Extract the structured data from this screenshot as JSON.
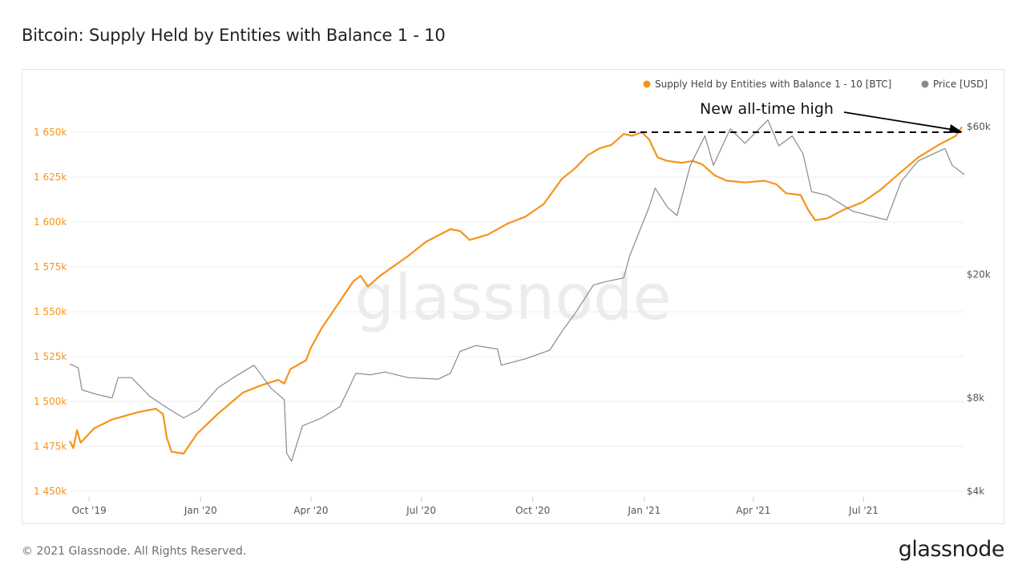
{
  "title": "Bitcoin: Supply Held by Entities with Balance 1 - 10",
  "footer": {
    "copyright": "© 2021 Glassnode. All Rights Reserved.",
    "brand": "glassnode"
  },
  "watermark": "glassnode",
  "colors": {
    "supply": "#f7931a",
    "price": "#8a8a8a",
    "annotation": "#000000"
  },
  "chart_data": {
    "type": "line",
    "grid": "horizontal",
    "legend_position": "top-right",
    "legend": [
      {
        "label": "Supply Held by Entities with Balance 1 - 10 [BTC]",
        "color": "#f7931a"
      },
      {
        "label": "Price [USD]",
        "color": "#8a8a8a"
      }
    ],
    "x_ticks": [
      "Oct '19",
      "Jan '20",
      "Apr '20",
      "Jul '20",
      "Oct '20",
      "Jan '21",
      "Apr '21",
      "Jul '21"
    ],
    "x_range": [
      "2019-09-15",
      "2021-09-22"
    ],
    "y_left": {
      "ticks": [
        "1 450k",
        "1 475k",
        "1 500k",
        "1 525k",
        "1 550k",
        "1 575k",
        "1 600k",
        "1 625k",
        "1 650k"
      ],
      "range": [
        1450000,
        1650000
      ]
    },
    "y_right": {
      "ticks": [
        "$4k",
        "$8k",
        "$20k",
        "$60k"
      ],
      "scale": "log",
      "range": [
        4000,
        60000
      ]
    },
    "annotation": {
      "text": "New all-time high",
      "value": 1650000
    },
    "series": [
      {
        "name": "Supply Held by Entities with Balance 1 - 10 [BTC]",
        "axis": "left",
        "points": [
          [
            "2019-09-15",
            1478000
          ],
          [
            "2019-09-18",
            1474000
          ],
          [
            "2019-09-21",
            1484000
          ],
          [
            "2019-09-24",
            1477000
          ],
          [
            "2019-10-05",
            1485000
          ],
          [
            "2019-10-20",
            1490000
          ],
          [
            "2019-11-10",
            1494000
          ],
          [
            "2019-11-25",
            1496000
          ],
          [
            "2019-12-01",
            1493000
          ],
          [
            "2019-12-04",
            1480000
          ],
          [
            "2019-12-08",
            1472000
          ],
          [
            "2019-12-18",
            1471000
          ],
          [
            "2019-12-25",
            1478000
          ],
          [
            "2019-12-29",
            1482000
          ],
          [
            "2020-01-15",
            1493000
          ],
          [
            "2020-02-05",
            1505000
          ],
          [
            "2020-02-20",
            1509000
          ],
          [
            "2020-03-05",
            1512000
          ],
          [
            "2020-03-10",
            1510000
          ],
          [
            "2020-03-15",
            1518000
          ],
          [
            "2020-03-28",
            1523000
          ],
          [
            "2020-04-01",
            1530000
          ],
          [
            "2020-04-10",
            1541000
          ],
          [
            "2020-04-25",
            1556000
          ],
          [
            "2020-05-06",
            1567000
          ],
          [
            "2020-05-12",
            1570000
          ],
          [
            "2020-05-18",
            1564000
          ],
          [
            "2020-05-28",
            1570000
          ],
          [
            "2020-06-20",
            1581000
          ],
          [
            "2020-07-05",
            1589000
          ],
          [
            "2020-07-25",
            1596000
          ],
          [
            "2020-08-02",
            1595000
          ],
          [
            "2020-08-10",
            1590000
          ],
          [
            "2020-08-25",
            1593000
          ],
          [
            "2020-09-10",
            1599000
          ],
          [
            "2020-09-25",
            1603000
          ],
          [
            "2020-10-10",
            1610000
          ],
          [
            "2020-10-25",
            1624000
          ],
          [
            "2020-11-05",
            1630000
          ],
          [
            "2020-11-15",
            1637000
          ],
          [
            "2020-11-25",
            1641000
          ],
          [
            "2020-12-05",
            1643000
          ],
          [
            "2020-12-15",
            1649000
          ],
          [
            "2020-12-22",
            1648000
          ],
          [
            "2020-12-30",
            1650000
          ],
          [
            "2021-01-05",
            1646000
          ],
          [
            "2021-01-12",
            1636000
          ],
          [
            "2021-01-20",
            1634000
          ],
          [
            "2021-02-01",
            1633000
          ],
          [
            "2021-02-10",
            1634000
          ],
          [
            "2021-02-18",
            1632000
          ],
          [
            "2021-02-28",
            1626000
          ],
          [
            "2021-03-10",
            1623000
          ],
          [
            "2021-03-25",
            1622000
          ],
          [
            "2021-04-10",
            1623000
          ],
          [
            "2021-04-20",
            1621000
          ],
          [
            "2021-04-28",
            1616000
          ],
          [
            "2021-05-10",
            1615000
          ],
          [
            "2021-05-16",
            1607000
          ],
          [
            "2021-05-22",
            1601000
          ],
          [
            "2021-06-01",
            1602000
          ],
          [
            "2021-06-15",
            1607000
          ],
          [
            "2021-06-30",
            1611000
          ],
          [
            "2021-07-15",
            1618000
          ],
          [
            "2021-08-01",
            1628000
          ],
          [
            "2021-08-15",
            1636000
          ],
          [
            "2021-09-01",
            1643000
          ],
          [
            "2021-09-15",
            1648000
          ],
          [
            "2021-09-20",
            1653000
          ]
        ]
      },
      {
        "name": "Price [USD]",
        "axis": "right",
        "points": [
          [
            "2019-09-15",
            10300
          ],
          [
            "2019-09-22",
            10000
          ],
          [
            "2019-09-25",
            8500
          ],
          [
            "2019-10-08",
            8200
          ],
          [
            "2019-10-20",
            8000
          ],
          [
            "2019-10-25",
            9300
          ],
          [
            "2019-11-05",
            9300
          ],
          [
            "2019-11-20",
            8100
          ],
          [
            "2019-12-05",
            7400
          ],
          [
            "2019-12-18",
            6900
          ],
          [
            "2019-12-30",
            7300
          ],
          [
            "2020-01-15",
            8600
          ],
          [
            "2020-01-28",
            9300
          ],
          [
            "2020-02-14",
            10200
          ],
          [
            "2020-02-28",
            8600
          ],
          [
            "2020-03-10",
            7900
          ],
          [
            "2020-03-12",
            5300
          ],
          [
            "2020-03-16",
            5000
          ],
          [
            "2020-03-25",
            6500
          ],
          [
            "2020-04-10",
            6900
          ],
          [
            "2020-04-25",
            7500
          ],
          [
            "2020-05-08",
            9600
          ],
          [
            "2020-05-20",
            9500
          ],
          [
            "2020-06-01",
            9700
          ],
          [
            "2020-06-20",
            9300
          ],
          [
            "2020-07-15",
            9200
          ],
          [
            "2020-07-25",
            9600
          ],
          [
            "2020-08-02",
            11300
          ],
          [
            "2020-08-15",
            11800
          ],
          [
            "2020-09-02",
            11500
          ],
          [
            "2020-09-05",
            10200
          ],
          [
            "2020-09-25",
            10700
          ],
          [
            "2020-10-15",
            11400
          ],
          [
            "2020-10-25",
            13100
          ],
          [
            "2020-11-05",
            15000
          ],
          [
            "2020-11-20",
            18500
          ],
          [
            "2020-12-01",
            19000
          ],
          [
            "2020-12-15",
            19500
          ],
          [
            "2020-12-20",
            23000
          ],
          [
            "2021-01-05",
            33000
          ],
          [
            "2021-01-10",
            38000
          ],
          [
            "2021-01-20",
            33000
          ],
          [
            "2021-01-28",
            31000
          ],
          [
            "2021-02-08",
            45000
          ],
          [
            "2021-02-20",
            56000
          ],
          [
            "2021-02-27",
            45000
          ],
          [
            "2021-03-13",
            59000
          ],
          [
            "2021-03-25",
            53000
          ],
          [
            "2021-04-13",
            63000
          ],
          [
            "2021-04-22",
            52000
          ],
          [
            "2021-05-03",
            56000
          ],
          [
            "2021-05-12",
            49000
          ],
          [
            "2021-05-19",
            37000
          ],
          [
            "2021-06-01",
            36000
          ],
          [
            "2021-06-22",
            32000
          ],
          [
            "2021-07-20",
            30000
          ],
          [
            "2021-08-01",
            40000
          ],
          [
            "2021-08-15",
            46500
          ],
          [
            "2021-09-06",
            51000
          ],
          [
            "2021-09-12",
            45000
          ],
          [
            "2021-09-22",
            42000
          ]
        ]
      }
    ]
  }
}
